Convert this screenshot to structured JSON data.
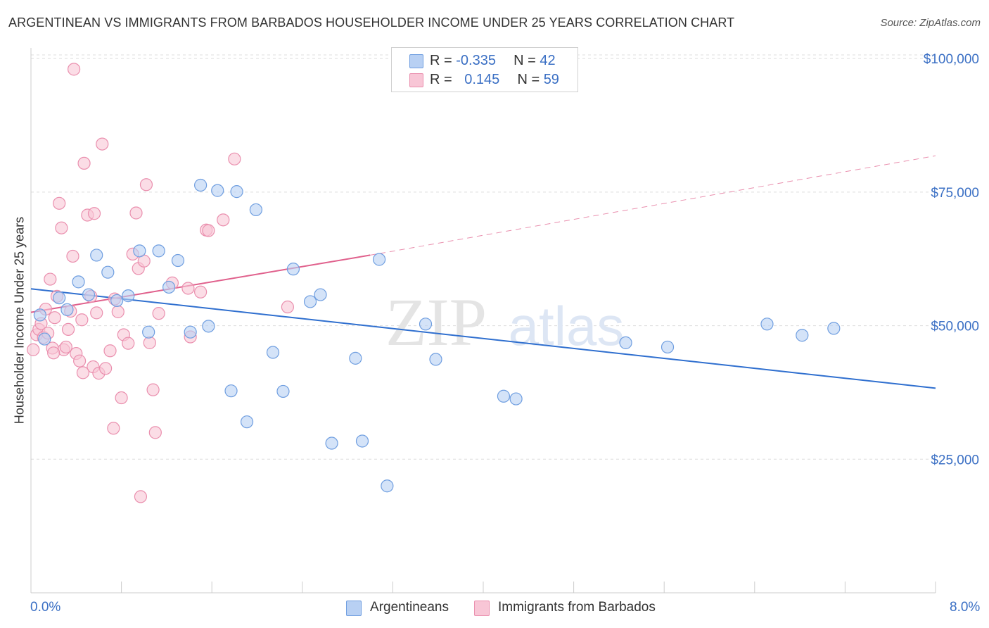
{
  "title": "ARGENTINEAN VS IMMIGRANTS FROM BARBADOS HOUSEHOLDER INCOME UNDER 25 YEARS CORRELATION CHART",
  "source": "Source: ZipAtlas.com",
  "watermark": {
    "zip": "ZIP",
    "atlas": "atlas"
  },
  "colors": {
    "blue_fill": "#b8d0f3",
    "blue_stroke": "#6f9ee0",
    "blue_line": "#2f6fcf",
    "pink_fill": "#f8c6d6",
    "pink_stroke": "#ea8fae",
    "pink_line": "#e0608c",
    "axis_text": "#3a6fc4",
    "grid": "#dddddd"
  },
  "legend": {
    "rows": [
      {
        "r_label": "R = ",
        "r_value": "-0.335",
        "n_label": "N = ",
        "n_value": "42"
      },
      {
        "r_label": "R = ",
        "r_value": "0.145",
        "n_label": "N = ",
        "n_value": "59"
      }
    ]
  },
  "bottom_legend": [
    "Argentineans",
    "Immigrants from Barbados"
  ],
  "chart_data": {
    "type": "scatter",
    "title": "ARGENTINEAN VS IMMIGRANTS FROM BARBADOS HOUSEHOLDER INCOME UNDER 25 YEARS CORRELATION CHART",
    "xlabel": "",
    "ylabel": "Householder Income Under 25 years",
    "xlim": [
      0,
      8
    ],
    "ylim": [
      0,
      102000
    ],
    "x_tick_labels": [
      "0.0%",
      "8.0%"
    ],
    "y_ticks": [
      25000,
      50000,
      75000,
      100000
    ],
    "y_tick_labels": [
      "$25,000",
      "$50,000",
      "$75,000",
      "$100,000"
    ],
    "grid": true,
    "legend_position": "top-center",
    "series": [
      {
        "name": "Argentineans",
        "r": -0.335,
        "n": 42,
        "trend": {
          "x0": 0,
          "y0": 56900,
          "x1": 8,
          "y1": 38300,
          "dashed_from": null
        },
        "points": [
          [
            0.08,
            52000
          ],
          [
            0.12,
            47500
          ],
          [
            0.25,
            55200
          ],
          [
            0.32,
            53000
          ],
          [
            0.42,
            58200
          ],
          [
            0.51,
            55800
          ],
          [
            0.58,
            63200
          ],
          [
            0.68,
            60000
          ],
          [
            0.76,
            54700
          ],
          [
            0.86,
            55600
          ],
          [
            0.96,
            64000
          ],
          [
            1.04,
            48800
          ],
          [
            1.13,
            64000
          ],
          [
            1.22,
            57200
          ],
          [
            1.3,
            62200
          ],
          [
            1.41,
            48800
          ],
          [
            1.5,
            76300
          ],
          [
            1.57,
            49900
          ],
          [
            1.65,
            75300
          ],
          [
            1.77,
            37800
          ],
          [
            1.82,
            75100
          ],
          [
            1.91,
            32000
          ],
          [
            1.99,
            71700
          ],
          [
            2.14,
            45000
          ],
          [
            2.23,
            37700
          ],
          [
            2.32,
            60600
          ],
          [
            2.47,
            54500
          ],
          [
            2.56,
            55800
          ],
          [
            2.66,
            28000
          ],
          [
            2.87,
            43900
          ],
          [
            2.93,
            28400
          ],
          [
            3.08,
            62400
          ],
          [
            3.15,
            20000
          ],
          [
            3.49,
            50300
          ],
          [
            3.58,
            43700
          ],
          [
            4.18,
            36800
          ],
          [
            4.29,
            36300
          ],
          [
            5.26,
            46800
          ],
          [
            5.63,
            46000
          ],
          [
            6.51,
            50300
          ],
          [
            6.82,
            48200
          ],
          [
            7.1,
            49500
          ]
        ]
      },
      {
        "name": "Immigrants from Barbados",
        "r": 0.145,
        "n": 59,
        "trend": {
          "x0": 0,
          "y0": 52500,
          "x1": 3.0,
          "y1": 63200,
          "x_end": 8,
          "y_end": 81800,
          "dashed_from": 3.0
        },
        "points": [
          [
            0.02,
            45500
          ],
          [
            0.05,
            48300
          ],
          [
            0.07,
            49300
          ],
          [
            0.09,
            50400
          ],
          [
            0.11,
            47800
          ],
          [
            0.13,
            53100
          ],
          [
            0.15,
            48600
          ],
          [
            0.17,
            58700
          ],
          [
            0.19,
            45800
          ],
          [
            0.21,
            51500
          ],
          [
            0.23,
            55500
          ],
          [
            0.25,
            72900
          ],
          [
            0.27,
            68300
          ],
          [
            0.29,
            45500
          ],
          [
            0.31,
            46000
          ],
          [
            0.33,
            49300
          ],
          [
            0.35,
            52700
          ],
          [
            0.37,
            63000
          ],
          [
            0.38,
            98000
          ],
          [
            0.4,
            44800
          ],
          [
            0.43,
            43400
          ],
          [
            0.45,
            51100
          ],
          [
            0.47,
            80400
          ],
          [
            0.5,
            70700
          ],
          [
            0.53,
            55500
          ],
          [
            0.55,
            42300
          ],
          [
            0.56,
            71000
          ],
          [
            0.58,
            52400
          ],
          [
            0.6,
            41100
          ],
          [
            0.63,
            84000
          ],
          [
            0.66,
            42000
          ],
          [
            0.7,
            45300
          ],
          [
            0.73,
            30800
          ],
          [
            0.77,
            52600
          ],
          [
            0.8,
            36500
          ],
          [
            0.82,
            48300
          ],
          [
            0.86,
            46700
          ],
          [
            0.9,
            63400
          ],
          [
            0.93,
            71100
          ],
          [
            0.95,
            60700
          ],
          [
            0.97,
            18000
          ],
          [
            1.0,
            62100
          ],
          [
            1.02,
            76400
          ],
          [
            1.05,
            46800
          ],
          [
            1.08,
            38000
          ],
          [
            1.1,
            30000
          ],
          [
            1.13,
            52300
          ],
          [
            1.25,
            58000
          ],
          [
            1.39,
            57000
          ],
          [
            1.41,
            47900
          ],
          [
            1.5,
            56300
          ],
          [
            1.55,
            67900
          ],
          [
            1.57,
            67800
          ],
          [
            1.7,
            69800
          ],
          [
            1.8,
            81200
          ],
          [
            2.27,
            53500
          ],
          [
            0.74,
            55000
          ],
          [
            0.46,
            41200
          ],
          [
            0.2,
            44900
          ]
        ]
      }
    ]
  }
}
